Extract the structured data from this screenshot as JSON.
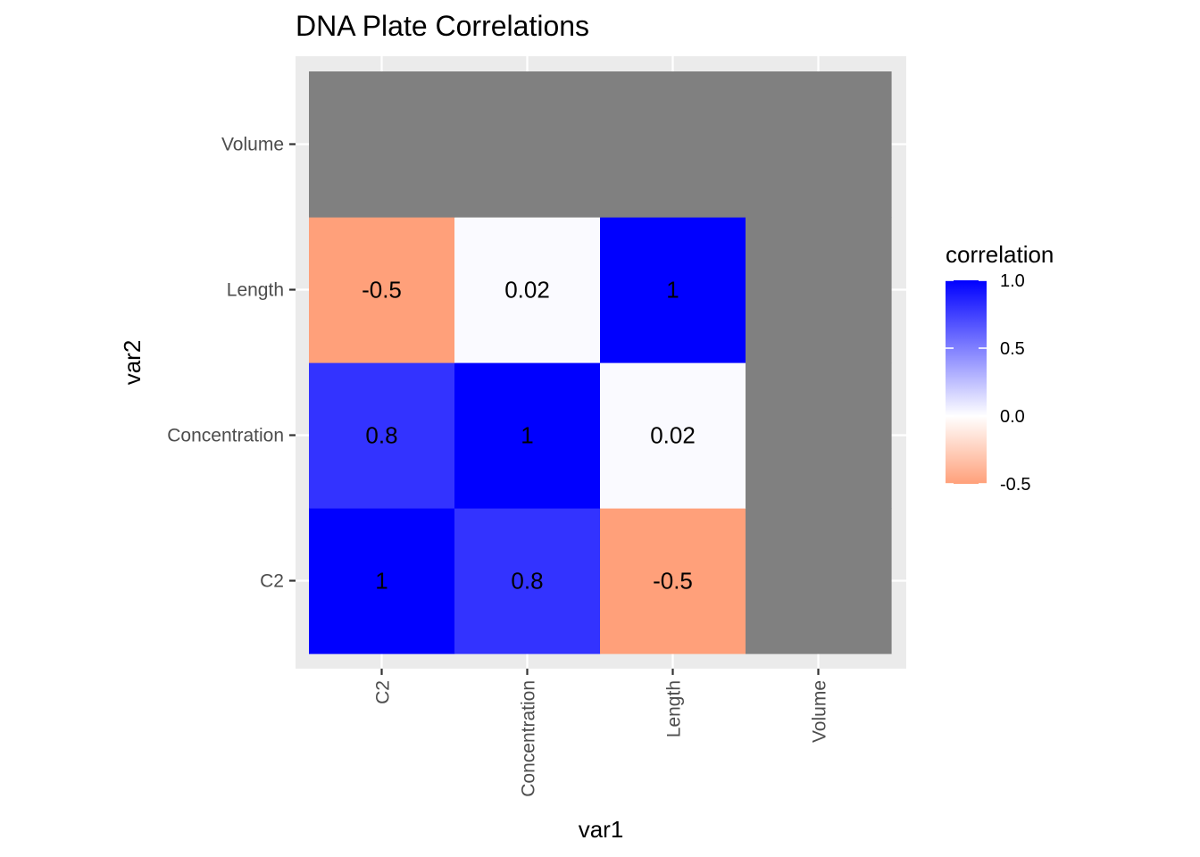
{
  "chart_data": {
    "type": "heatmap",
    "title": "DNA Plate Correlations",
    "xlabel": "var1",
    "ylabel": "var2",
    "x_categories": [
      "C2",
      "Concentration",
      "Length",
      "Volume"
    ],
    "y_categories": [
      "C2",
      "Concentration",
      "Length",
      "Volume"
    ],
    "cells": [
      {
        "x": "C2",
        "y": "C2",
        "value": 1,
        "label": "1"
      },
      {
        "x": "Concentration",
        "y": "C2",
        "value": 0.8,
        "label": "0.8"
      },
      {
        "x": "Length",
        "y": "C2",
        "value": -0.5,
        "label": "-0.5"
      },
      {
        "x": "Volume",
        "y": "C2",
        "value": null,
        "label": ""
      },
      {
        "x": "C2",
        "y": "Concentration",
        "value": 0.8,
        "label": "0.8"
      },
      {
        "x": "Concentration",
        "y": "Concentration",
        "value": 1,
        "label": "1"
      },
      {
        "x": "Length",
        "y": "Concentration",
        "value": 0.02,
        "label": "0.02"
      },
      {
        "x": "Volume",
        "y": "Concentration",
        "value": null,
        "label": ""
      },
      {
        "x": "C2",
        "y": "Length",
        "value": -0.5,
        "label": "-0.5"
      },
      {
        "x": "Concentration",
        "y": "Length",
        "value": 0.02,
        "label": "0.02"
      },
      {
        "x": "Length",
        "y": "Length",
        "value": 1,
        "label": "1"
      },
      {
        "x": "Volume",
        "y": "Length",
        "value": null,
        "label": ""
      },
      {
        "x": "C2",
        "y": "Volume",
        "value": null,
        "label": ""
      },
      {
        "x": "Concentration",
        "y": "Volume",
        "value": null,
        "label": ""
      },
      {
        "x": "Length",
        "y": "Volume",
        "value": null,
        "label": ""
      },
      {
        "x": "Volume",
        "y": "Volume",
        "value": null,
        "label": ""
      }
    ],
    "legend": {
      "title": "correlation",
      "placement": "right",
      "ticks": [
        {
          "value": 1.0,
          "label": "1.0"
        },
        {
          "value": 0.5,
          "label": "0.5"
        },
        {
          "value": 0.0,
          "label": "0.0"
        },
        {
          "value": -0.5,
          "label": "-0.5"
        }
      ],
      "range": [
        -0.5,
        1.0
      ]
    },
    "colors": {
      "high": "#0000ff",
      "mid": "#ffffff",
      "low": "#ffa07a",
      "na": "#808080",
      "panel": "#ebebeb",
      "grid": "#ffffff"
    },
    "grid": true
  }
}
